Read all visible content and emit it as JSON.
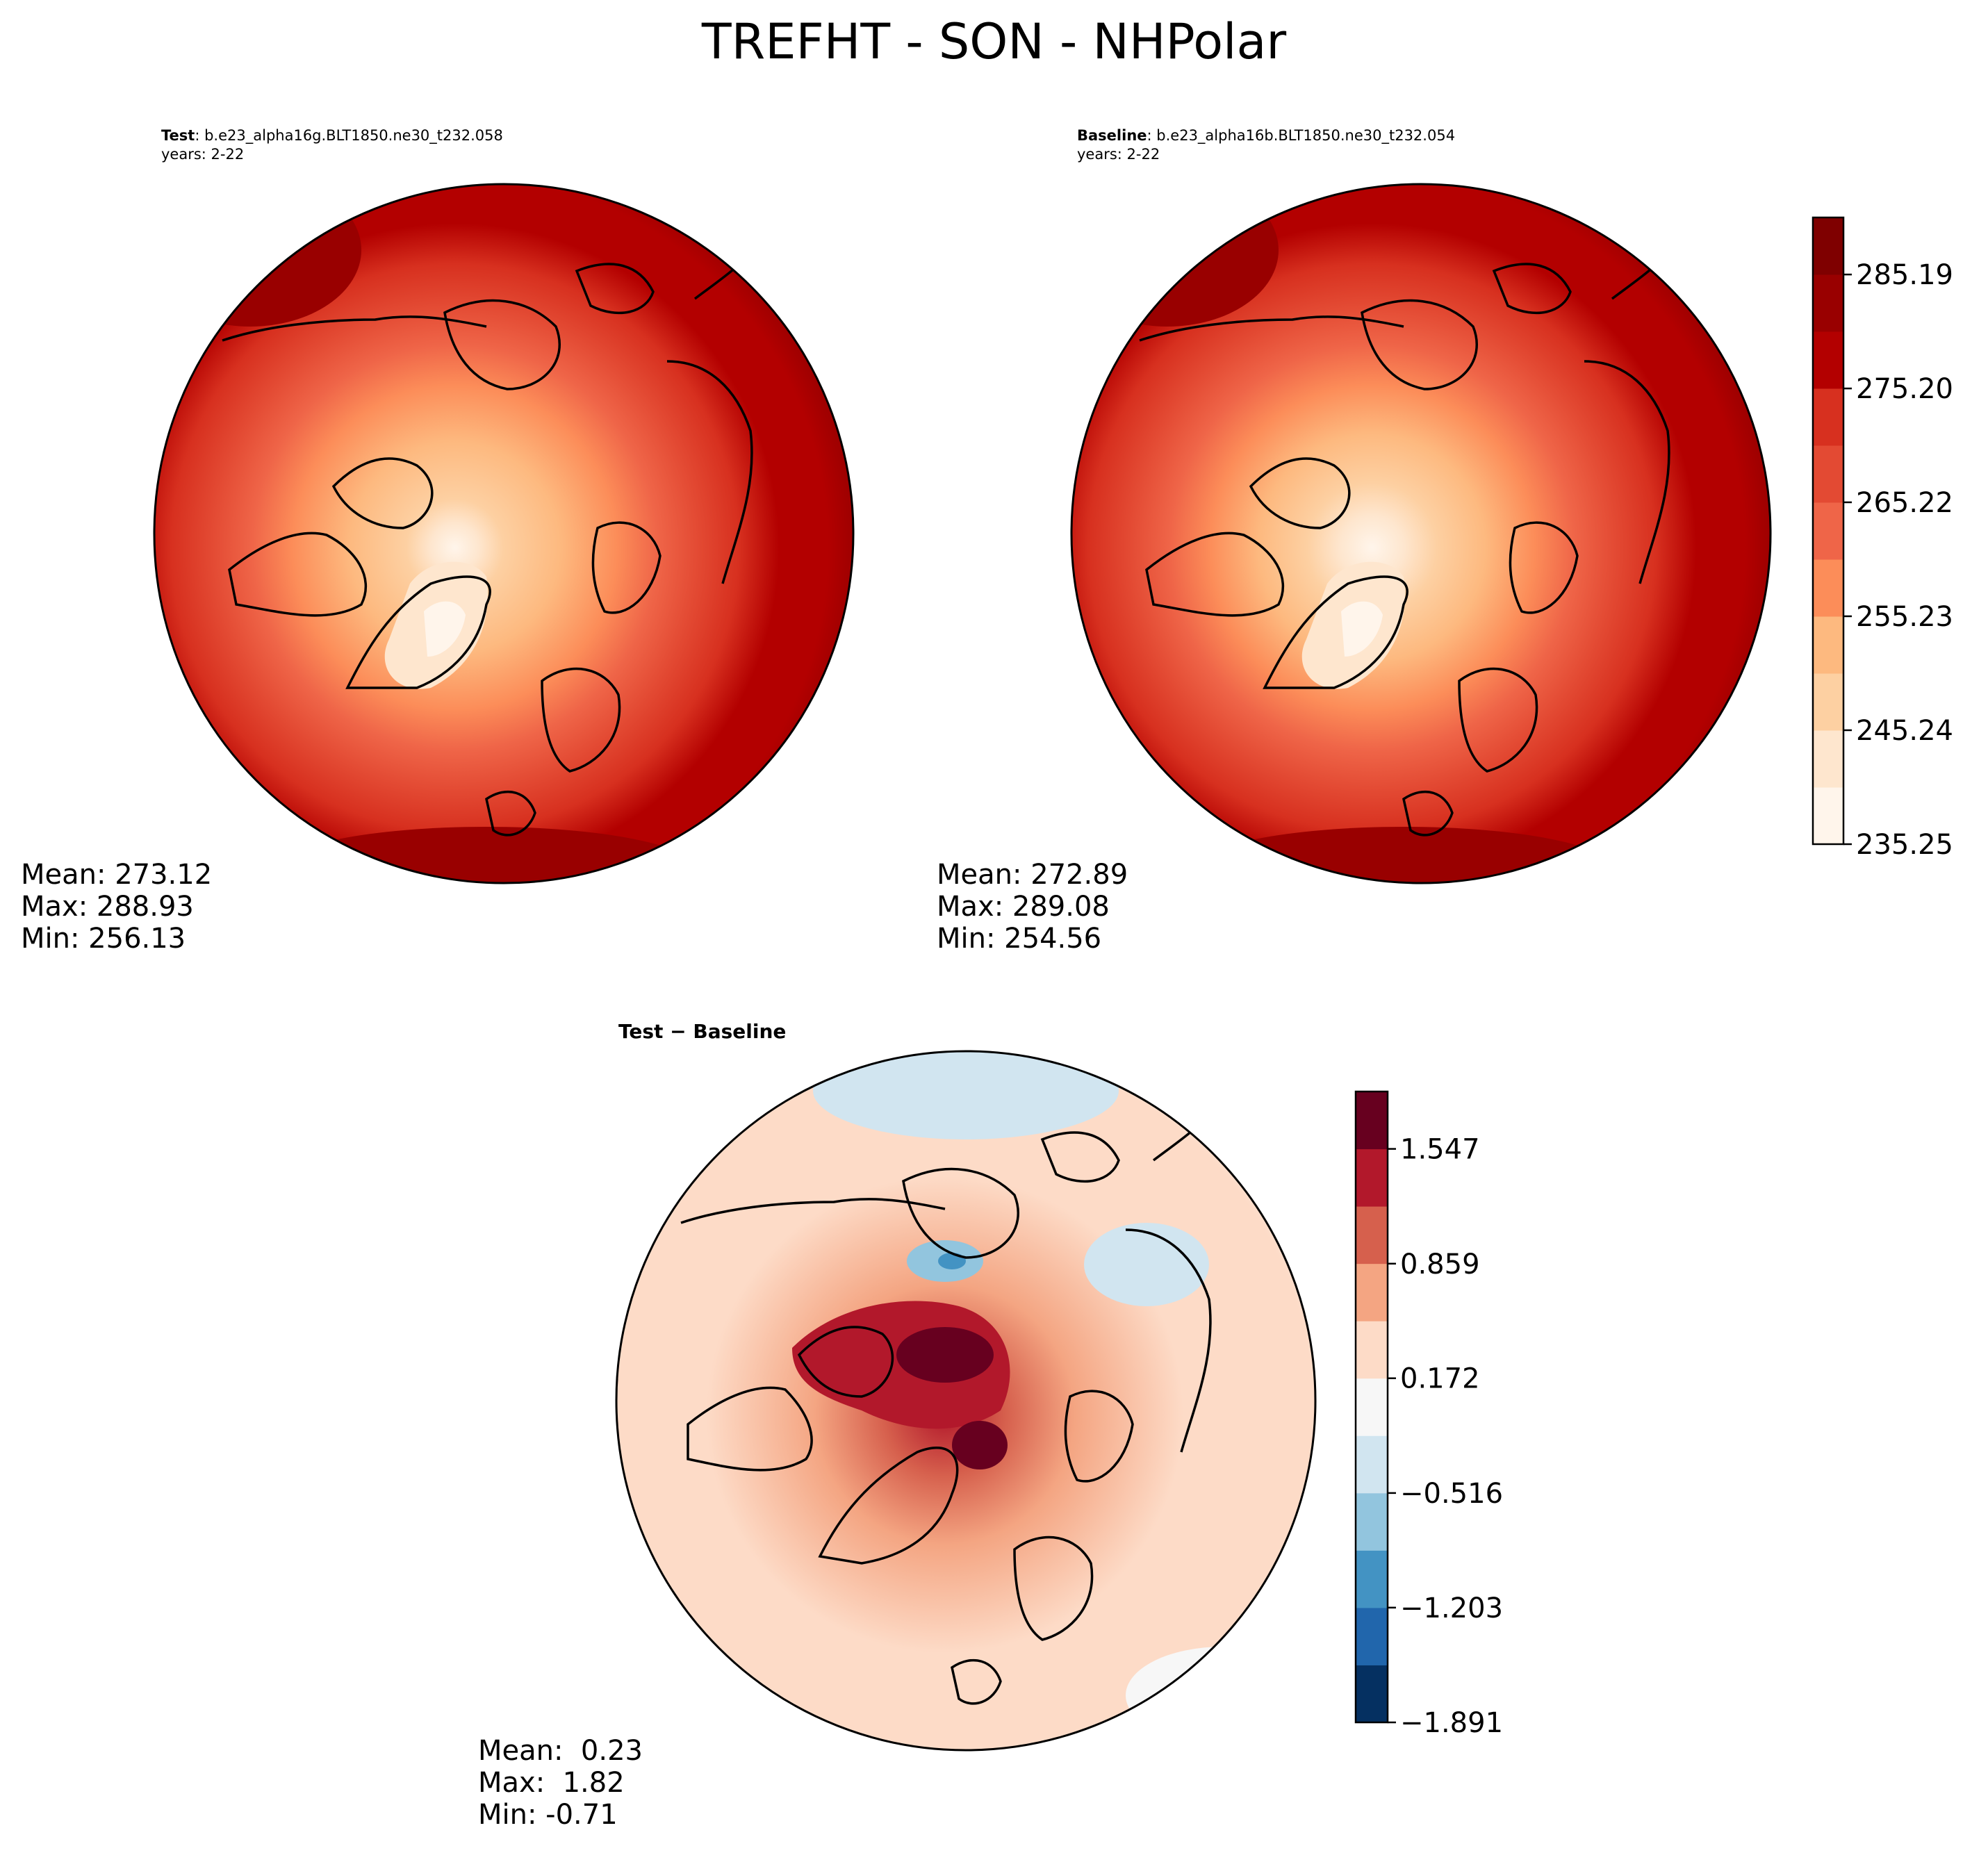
{
  "figure": {
    "title": "TREFHT - SON - NHPolar"
  },
  "chart_data": [
    {
      "type": "heatmap",
      "panel": "test",
      "title_label": "Test",
      "title_case": "b.e23_alpha16g.BLT1850.ne30_t232.058",
      "years_label": "years: 2-22",
      "projection": "North Polar Stereographic",
      "stats": {
        "mean_label": "Mean:",
        "mean": "273.12",
        "max_label": "Max:",
        "max": "288.93",
        "min_label": "Min:",
        "min": "256.13"
      }
    },
    {
      "type": "heatmap",
      "panel": "baseline",
      "title_label": "Baseline",
      "title_case": "b.e23_alpha16b.BLT1850.ne30_t232.054",
      "years_label": "years: 2-22",
      "projection": "North Polar Stereographic",
      "stats": {
        "mean_label": "Mean:",
        "mean": "272.89",
        "max_label": "Max:",
        "max": "289.08",
        "min_label": "Min:",
        "min": "254.56"
      }
    },
    {
      "type": "heatmap",
      "panel": "difference",
      "title_label": "Test − Baseline",
      "projection": "North Polar Stereographic",
      "stats": {
        "mean_label": "Mean:",
        "mean": " 0.23",
        "max_label": "Max:",
        "max": " 1.82",
        "min_label": "Min:",
        "min": "-0.71"
      }
    }
  ],
  "colorbars": {
    "absolute": {
      "range": [
        235.25,
        290.19
      ],
      "levels": 11,
      "tick_values": [
        235.25,
        245.24,
        255.23,
        265.22,
        275.2,
        285.19
      ],
      "tick_labels": [
        "235.25",
        "245.24",
        "255.23",
        "265.22",
        "275.20",
        "285.19"
      ],
      "colors": [
        "#fff5eb",
        "#fee6ce",
        "#fdd0a2",
        "#fdb97f",
        "#fc8d59",
        "#ef6548",
        "#e34a33",
        "#d7301f",
        "#b30000",
        "#990000",
        "#7f0000"
      ]
    },
    "difference": {
      "range": [
        -1.891,
        1.891
      ],
      "levels": 11,
      "tick_values": [
        -1.891,
        -1.203,
        -0.516,
        0.172,
        0.859,
        1.547
      ],
      "tick_labels": [
        "−1.891",
        "−1.203",
        "−0.516",
        "0.172",
        "0.859",
        "1.547"
      ],
      "colors": [
        "#053061",
        "#2166ac",
        "#4393c3",
        "#92c5de",
        "#d1e5f0",
        "#f7f7f7",
        "#fddbc7",
        "#f4a582",
        "#d6604d",
        "#b2182b",
        "#67001f"
      ]
    }
  },
  "palette": {
    "abs_1": "#fff5eb",
    "abs_2": "#fee6ce",
    "abs_3": "#fdd0a2",
    "abs_4": "#fdb97f",
    "abs_5": "#fc8d59",
    "abs_6": "#ef6548",
    "abs_7": "#e34a33",
    "abs_8": "#d7301f",
    "abs_9": "#b30000",
    "abs_10": "#990000",
    "abs_11": "#7f0000",
    "diff_neg5": "#053061",
    "diff_neg4": "#2166ac",
    "diff_neg3": "#4393c3",
    "diff_neg2": "#92c5de",
    "diff_neg1": "#d1e5f0",
    "diff_zero": "#f7f7f7",
    "diff_pos1": "#fddbc7",
    "diff_pos2": "#f4a582",
    "diff_pos3": "#d6604d",
    "diff_pos4": "#b2182b",
    "diff_pos5": "#67001f"
  }
}
